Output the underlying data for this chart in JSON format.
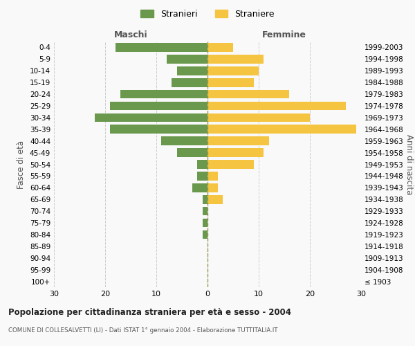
{
  "age_groups": [
    "100+",
    "95-99",
    "90-94",
    "85-89",
    "80-84",
    "75-79",
    "70-74",
    "65-69",
    "60-64",
    "55-59",
    "50-54",
    "45-49",
    "40-44",
    "35-39",
    "30-34",
    "25-29",
    "20-24",
    "15-19",
    "10-14",
    "5-9",
    "0-4"
  ],
  "birth_years": [
    "≤ 1903",
    "1904-1908",
    "1909-1913",
    "1914-1918",
    "1919-1923",
    "1924-1928",
    "1929-1933",
    "1934-1938",
    "1939-1943",
    "1944-1948",
    "1949-1953",
    "1954-1958",
    "1959-1963",
    "1964-1968",
    "1969-1973",
    "1974-1978",
    "1979-1983",
    "1984-1988",
    "1989-1993",
    "1994-1998",
    "1999-2003"
  ],
  "males": [
    0,
    0,
    0,
    0,
    1,
    1,
    1,
    1,
    3,
    2,
    2,
    6,
    9,
    19,
    22,
    19,
    17,
    7,
    6,
    8,
    18
  ],
  "females": [
    0,
    0,
    0,
    0,
    0,
    0,
    0,
    3,
    2,
    2,
    9,
    11,
    12,
    29,
    20,
    27,
    16,
    9,
    10,
    11,
    5
  ],
  "male_color": "#6a994e",
  "female_color": "#f5c542",
  "background_color": "#f9f9f9",
  "grid_color": "#cccccc",
  "title": "Popolazione per cittadinanza straniera per età e sesso - 2004",
  "subtitle": "COMUNE DI COLLESALVETTI (LI) - Dati ISTAT 1° gennaio 2004 - Elaborazione TUTTITALIA.IT",
  "xlabel_left": "Maschi",
  "xlabel_right": "Femmine",
  "ylabel_left": "Fasce di età",
  "ylabel_right": "Anni di nascita",
  "legend_stranieri": "Stranieri",
  "legend_straniere": "Straniere",
  "xlim": 30,
  "bar_height": 0.75
}
